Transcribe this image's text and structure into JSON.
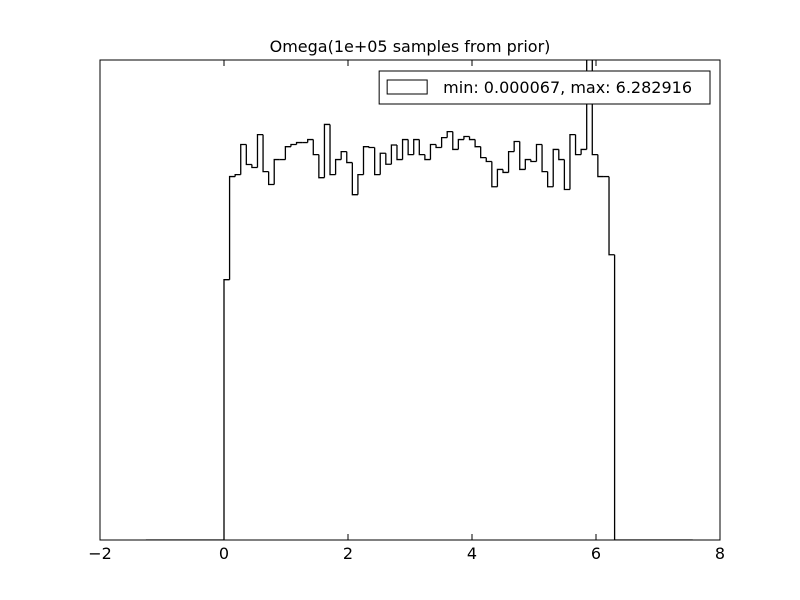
{
  "chart_data": {
    "type": "histogram",
    "title": "Omega(1e+05 samples from prior)",
    "bins": [
      -1.26,
      0,
      0.09,
      0.18,
      0.27,
      0.36,
      0.45,
      0.54,
      0.63,
      0.72,
      0.81,
      0.9,
      0.99,
      1.08,
      1.17,
      1.26,
      1.35,
      1.44,
      1.53,
      1.62,
      1.71,
      1.8,
      1.89,
      1.98,
      2.07,
      2.16,
      2.25,
      2.34,
      2.43,
      2.52,
      2.61,
      2.7,
      2.79,
      2.88,
      2.97,
      3.06,
      3.15,
      3.24,
      3.33,
      3.42,
      3.51,
      3.6,
      3.69,
      3.78,
      3.87,
      3.96,
      4.05,
      4.14,
      4.23,
      4.32,
      4.41,
      4.5,
      4.59,
      4.68,
      4.77,
      4.86,
      4.95,
      5.04,
      5.13,
      5.22,
      5.31,
      5.4,
      5.49,
      5.58,
      5.67,
      5.76,
      5.85,
      5.94,
      6.03,
      6.12,
      6.21,
      6.3,
      7.56
    ],
    "series": [
      {
        "name": "min: 0.000067, max: 6.282916",
        "color": "#000000",
        "values": [
          0,
          949,
          1325,
          1332,
          1442,
          1369,
          1358,
          1478,
          1343,
          1296,
          1387,
          1387,
          1434,
          1442,
          1449,
          1449,
          1460,
          1405,
          1321,
          1515,
          1332,
          1387,
          1416,
          1376,
          1259,
          1332,
          1434,
          1431,
          1332,
          1410,
          1370,
          1440,
          1387,
          1460,
          1405,
          1460,
          1405,
          1387,
          1442,
          1431,
          1467,
          1489,
          1424,
          1460,
          1471,
          1460,
          1434,
          1394,
          1380,
          1288,
          1351,
          1340,
          1416,
          1453,
          1351,
          1387,
          1380,
          1442,
          1343,
          1288,
          1424,
          1387,
          1278,
          1478,
          1405,
          1424,
          1820,
          1405,
          1325,
          1325,
          1040,
          0
        ]
      }
    ],
    "xlim": [
      -2,
      8
    ],
    "xticks": [
      {
        "value": -2,
        "label": "−2"
      },
      0,
      2,
      4,
      6,
      8
    ],
    "ylim": [
      0,
      1750
    ],
    "legend": "upper right"
  }
}
